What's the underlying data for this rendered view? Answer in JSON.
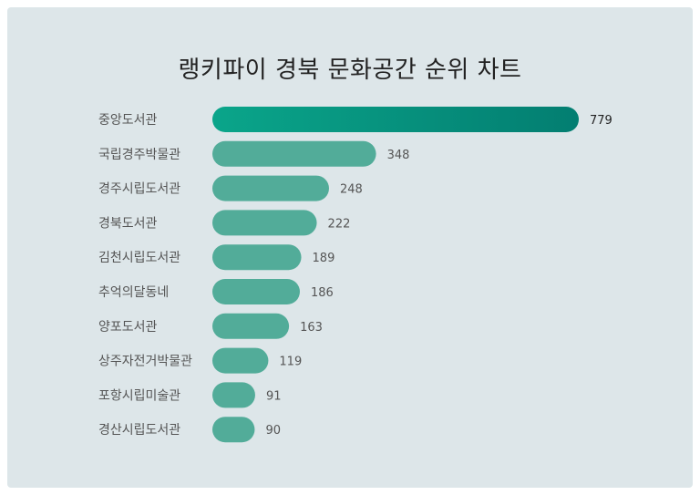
{
  "title": "랭키파이 경북 문화공간 순위 차트",
  "colors": {
    "bar": "#52ac99",
    "bar_top_start": "#0aa58a",
    "bar_top_end": "#037e71",
    "background": "#dde6e9"
  },
  "chart_data": {
    "type": "bar",
    "orientation": "horizontal",
    "title": "랭키파이 경북 문화공간 순위 차트",
    "categories": [
      "중앙도서관",
      "국립경주박물관",
      "경주시립도서관",
      "경북도서관",
      "김천시립도서관",
      "추억의달동네",
      "양포도서관",
      "상주자전거박물관",
      "포항시립미술관",
      "경산시립도서관"
    ],
    "values": [
      779,
      348,
      248,
      222,
      189,
      186,
      163,
      119,
      91,
      90
    ],
    "xlabel": "",
    "ylabel": "",
    "grid": false,
    "legend": "none"
  }
}
